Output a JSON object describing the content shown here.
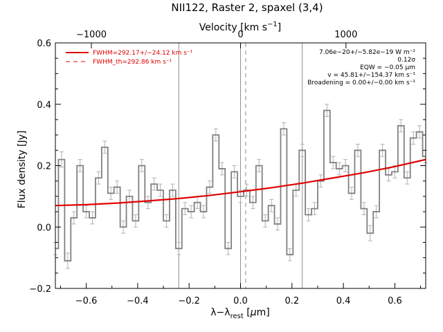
{
  "chart_data": {
    "type": "line",
    "title": "NII122, Raster 2, spaxel (3,4)",
    "xlabel": "λ−λrest [μm]",
    "xlabel_parts": {
      "main": "λ−λ",
      "sub": "rest",
      "unit_open": " [",
      "unit_mu": "μ",
      "unit_rest": "m]"
    },
    "ylabel": "Flux density [Jy]",
    "top_xlabel": "Velocity [km s⁻¹]",
    "top_xlabel_parts": {
      "main": "Velocity [km s",
      "sup": "−1",
      "close": "]"
    },
    "xlim": [
      -0.72,
      0.72
    ],
    "ylim": [
      -0.2,
      0.6
    ],
    "x_ticks": [
      "−0.6",
      "−0.4",
      "−0.2",
      "0.0",
      "0.2",
      "0.4",
      "0.6"
    ],
    "x_tick_values": [
      -0.6,
      -0.4,
      -0.2,
      0.0,
      0.2,
      0.4,
      0.6
    ],
    "y_ticks": [
      "−0.2",
      "0.0",
      "0.2",
      "0.4",
      "0.6"
    ],
    "y_tick_values": [
      -0.2,
      0.0,
      0.2,
      0.4,
      0.6
    ],
    "top_x_ticks": [
      "−1000",
      "0",
      "1000"
    ],
    "top_x_tick_wavelengths": [
      -0.58,
      0.0,
      0.41
    ],
    "vertical_lines": {
      "solid": [
        -0.24,
        0.0,
        0.24
      ],
      "dashed": [
        0.02
      ]
    },
    "spectrum": {
      "name": "",
      "color": "#808080",
      "bin_width": 0.024,
      "x": [
        -0.72,
        -0.696,
        -0.672,
        -0.648,
        -0.624,
        -0.6,
        -0.576,
        -0.552,
        -0.528,
        -0.504,
        -0.48,
        -0.456,
        -0.432,
        -0.408,
        -0.384,
        -0.36,
        -0.336,
        -0.312,
        -0.288,
        -0.264,
        -0.24,
        -0.216,
        -0.192,
        -0.168,
        -0.144,
        -0.12,
        -0.096,
        -0.072,
        -0.048,
        -0.024,
        0.0,
        0.024,
        0.048,
        0.072,
        0.096,
        0.12,
        0.144,
        0.168,
        0.192,
        0.216,
        0.24,
        0.264,
        0.288,
        0.312,
        0.336,
        0.36,
        0.384,
        0.408,
        0.432,
        0.456,
        0.48,
        0.504,
        0.528,
        0.552,
        0.576,
        0.6,
        0.624,
        0.648,
        0.672,
        0.696,
        0.72
      ],
      "y": [
        -0.07,
        0.22,
        -0.11,
        0.03,
        0.2,
        0.05,
        0.03,
        0.16,
        0.26,
        0.11,
        0.13,
        0.0,
        0.1,
        0.02,
        0.2,
        0.08,
        0.14,
        0.12,
        0.02,
        0.12,
        -0.07,
        0.06,
        0.05,
        0.08,
        0.05,
        0.13,
        0.3,
        0.19,
        -0.07,
        0.18,
        0.1,
        0.12,
        0.08,
        0.2,
        0.02,
        0.07,
        0.01,
        0.32,
        -0.09,
        0.12,
        0.25,
        0.04,
        0.06,
        0.15,
        0.38,
        0.21,
        0.19,
        0.2,
        0.11,
        0.25,
        0.06,
        -0.02,
        0.05,
        0.25,
        0.17,
        0.18,
        0.33,
        0.16,
        0.29,
        0.31,
        0.23
      ],
      "errors": [
        0.02,
        0.025,
        0.025,
        0.02,
        0.02,
        0.02,
        0.02,
        0.02,
        0.02,
        0.02,
        0.02,
        0.02,
        0.02,
        0.02,
        0.02,
        0.02,
        0.02,
        0.02,
        0.02,
        0.02,
        0.02,
        0.02,
        0.02,
        0.02,
        0.02,
        0.02,
        0.02,
        0.02,
        0.02,
        0.02,
        0.02,
        0.02,
        0.02,
        0.02,
        0.02,
        0.02,
        0.02,
        0.02,
        0.02,
        0.02,
        0.02,
        0.02,
        0.02,
        0.02,
        0.02,
        0.02,
        0.02,
        0.02,
        0.02,
        0.02,
        0.02,
        0.025,
        0.02,
        0.02,
        0.02,
        0.02,
        0.02,
        0.02,
        0.02,
        0.02,
        0.02
      ]
    },
    "fit": {
      "color": "#e00000",
      "x": [
        -0.72,
        -0.6,
        -0.48,
        -0.36,
        -0.24,
        -0.12,
        0.0,
        0.12,
        0.24,
        0.36,
        0.48,
        0.6,
        0.72
      ],
      "y": [
        0.07,
        0.073,
        0.078,
        0.085,
        0.093,
        0.103,
        0.115,
        0.128,
        0.143,
        0.16,
        0.177,
        0.197,
        0.22
      ]
    },
    "legend": [
      {
        "label": "FWHM=292.17+/−24.12 km s⁻¹",
        "style": "solid",
        "color": "#e00000"
      },
      {
        "label": "FWHM_th=292.86 km s⁻¹",
        "style": "dashed",
        "color": "#e00000"
      }
    ],
    "annotations": [
      "7.06e−20+/−5.82e−19 W m⁻²",
      "0.12σ",
      "EQW = −0.05 μm",
      "v = 45.81+/−154.37 km s⁻¹",
      "Broadening = 0.00+/−0.00 km s⁻¹"
    ]
  }
}
